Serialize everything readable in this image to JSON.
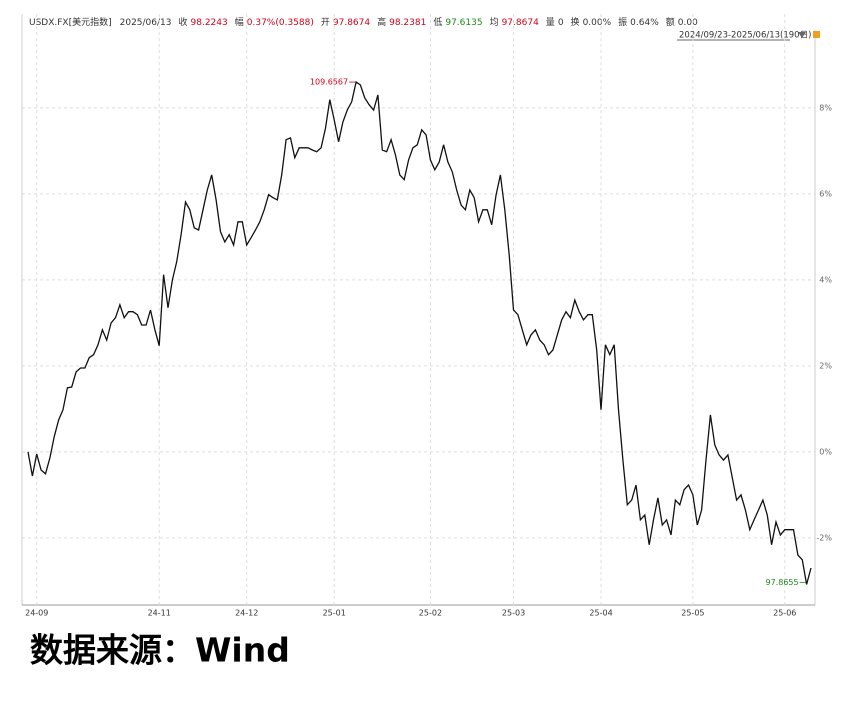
{
  "chart_data": {
    "type": "line",
    "header": {
      "symbol": "USDX.FX[美元指数]",
      "date": "2025/06/13",
      "fields": [
        {
          "label": "收",
          "value": "98.2243",
          "color": "#d0021b"
        },
        {
          "label": "幅",
          "value": "0.37%(0.3588)",
          "color": "#d0021b"
        },
        {
          "label": "开",
          "value": "97.8674",
          "color": "#d0021b"
        },
        {
          "label": "高",
          "value": "98.2381",
          "color": "#d0021b"
        },
        {
          "label": "低",
          "value": "97.6135",
          "color": "#1a8a1a"
        },
        {
          "label": "均",
          "value": "97.8674",
          "color": "#d0021b"
        },
        {
          "label": "量",
          "value": "0",
          "color": "#333333"
        },
        {
          "label": "换",
          "value": "0.00%",
          "color": "#333333"
        },
        {
          "label": "振",
          "value": "0.64%",
          "color": "#333333"
        },
        {
          "label": "额",
          "value": "0.00",
          "color": "#333333"
        }
      ]
    },
    "range_label": "2024/09/23-2025/06/13(190日)",
    "max_label": "109.6567",
    "max_color": "#d0021b",
    "min_label": "97.8655",
    "min_color": "#1a8a1a",
    "source": "数据来源：Wind",
    "color": "#111111",
    "grid": true,
    "ylim": [
      -3.56,
      9.81
    ],
    "yticks": [
      {
        "value": -2,
        "label": "-2%"
      },
      {
        "value": 0,
        "label": "0%"
      },
      {
        "value": 2,
        "label": "2%"
      },
      {
        "value": 4,
        "label": "4%"
      },
      {
        "value": 6,
        "label": "6%"
      },
      {
        "value": 8,
        "label": "8%"
      }
    ],
    "categories": [
      null,
      null,
      "24-09",
      null,
      null,
      null,
      null,
      null,
      null,
      null,
      null,
      null,
      null,
      null,
      null,
      null,
      null,
      null,
      null,
      null,
      null,
      null,
      null,
      null,
      null,
      null,
      null,
      null,
      null,
      null,
      "24-11",
      null,
      null,
      null,
      null,
      null,
      null,
      null,
      null,
      null,
      null,
      null,
      null,
      null,
      null,
      null,
      null,
      null,
      null,
      null,
      "24-12",
      null,
      null,
      null,
      null,
      null,
      null,
      null,
      null,
      null,
      null,
      null,
      null,
      null,
      null,
      null,
      null,
      null,
      null,
      null,
      "25-01",
      null,
      null,
      null,
      null,
      null,
      null,
      null,
      null,
      null,
      null,
      null,
      null,
      null,
      null,
      null,
      null,
      null,
      null,
      null,
      null,
      null,
      "25-02",
      null,
      null,
      null,
      null,
      null,
      null,
      null,
      null,
      null,
      null,
      null,
      null,
      null,
      null,
      null,
      null,
      null,
      null,
      "25-03",
      null,
      null,
      null,
      null,
      null,
      null,
      null,
      null,
      null,
      null,
      null,
      null,
      null,
      null,
      null,
      null,
      null,
      null,
      null,
      "25-04",
      null,
      null,
      null,
      null,
      null,
      null,
      null,
      null,
      null,
      null,
      null,
      null,
      null,
      null,
      null,
      null,
      null,
      null,
      null,
      null,
      "25-05",
      null,
      null,
      null,
      null,
      null,
      null,
      null,
      null,
      null,
      null,
      null,
      null,
      null,
      null,
      null,
      null,
      null,
      null,
      null,
      null,
      "25-06",
      null,
      null,
      null,
      null,
      null,
      null
    ],
    "values": [
      0,
      -0.56,
      -0.05,
      -0.42,
      -0.51,
      -0.14,
      0.35,
      0.74,
      0.98,
      1.49,
      1.51,
      1.86,
      1.95,
      1.95,
      2.19,
      2.26,
      2.49,
      2.84,
      2.6,
      3.0,
      3.12,
      3.42,
      3.12,
      3.26,
      3.26,
      3.19,
      2.95,
      2.95,
      3.3,
      2.84,
      2.47,
      4.12,
      3.35,
      4.0,
      4.42,
      5.05,
      5.81,
      5.63,
      5.21,
      5.16,
      5.63,
      6.09,
      6.44,
      5.86,
      5.12,
      4.88,
      5.05,
      4.81,
      5.35,
      5.35,
      4.81,
      4.98,
      5.16,
      5.35,
      5.63,
      5.98,
      5.91,
      5.86,
      6.44,
      7.26,
      7.3,
      6.84,
      7.07,
      7.07,
      7.07,
      7.02,
      6.98,
      7.07,
      7.53,
      8.19,
      7.72,
      7.21,
      7.67,
      7.95,
      8.14,
      8.6,
      8.53,
      8.23,
      8.07,
      7.95,
      8.3,
      7.02,
      6.98,
      7.26,
      6.91,
      6.44,
      6.33,
      6.79,
      7.07,
      7.14,
      7.49,
      7.37,
      6.79,
      6.56,
      6.74,
      7.14,
      6.74,
      6.51,
      6.09,
      5.74,
      5.63,
      6.09,
      5.91,
      5.35,
      5.63,
      5.63,
      5.28,
      5.98,
      6.44,
      5.63,
      4.58,
      3.3,
      3.19,
      2.84,
      2.49,
      2.72,
      2.84,
      2.6,
      2.49,
      2.26,
      2.37,
      2.72,
      3.07,
      3.26,
      3.12,
      3.53,
      3.26,
      3.07,
      3.19,
      3.19,
      2.37,
      0.98,
      2.49,
      2.26,
      2.49,
      0.98,
      -0.19,
      -1.23,
      -1.12,
      -0.77,
      -1.58,
      -1.47,
      -2.16,
      -1.58,
      -1.07,
      -1.7,
      -1.58,
      -1.93,
      -1.12,
      -1.23,
      -0.88,
      -0.77,
      -1.0,
      -1.7,
      -1.35,
      -0.19,
      0.86,
      0.16,
      -0.07,
      -0.19,
      -0.07,
      -0.6,
      -1.12,
      -1.0,
      -1.35,
      -1.81,
      -1.58,
      -1.35,
      -1.12,
      -1.47,
      -2.16,
      -1.63,
      -1.93,
      -1.81,
      -1.81,
      -1.81,
      -2.4,
      -2.51,
      -3.08,
      -2.7
    ]
  }
}
